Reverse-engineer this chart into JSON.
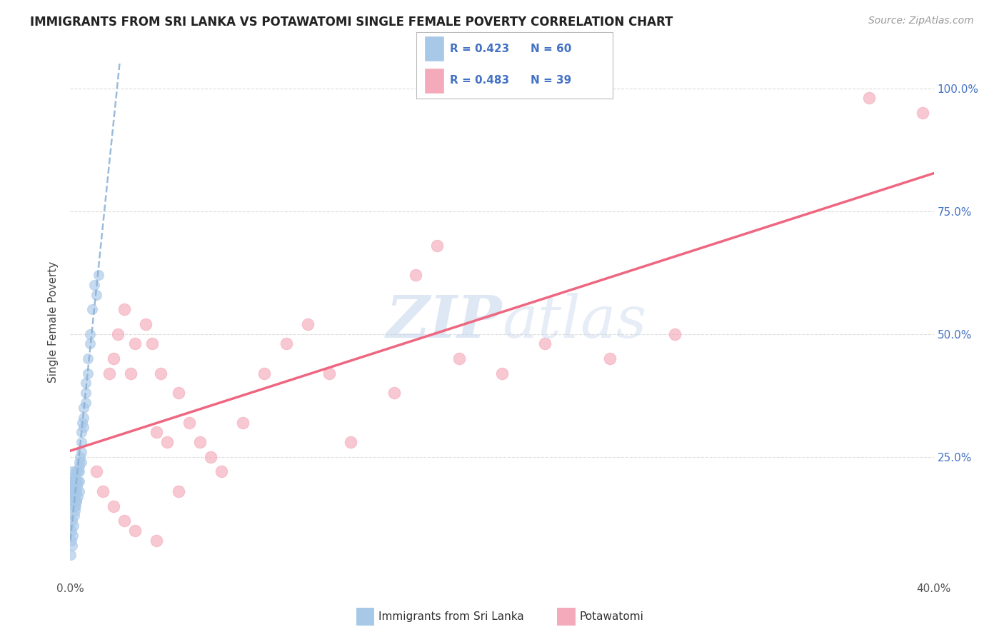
{
  "title": "IMMIGRANTS FROM SRI LANKA VS POTAWATOMI SINGLE FEMALE POVERTY CORRELATION CHART",
  "source": "Source: ZipAtlas.com",
  "ylabel": "Single Female Poverty",
  "legend_label_1": "Immigrants from Sri Lanka",
  "legend_label_2": "Potawatomi",
  "R1": 0.423,
  "N1": 60,
  "R2": 0.483,
  "N2": 39,
  "xlim": [
    0.0,
    0.4
  ],
  "ylim": [
    0.0,
    1.05
  ],
  "color_blue": "#A8C8E8",
  "color_pink": "#F4AABB",
  "line_blue": "#8AAFD4",
  "line_pink": "#EE6680",
  "background_color": "#FFFFFF",
  "sri_lanka_x": [
    0.0005,
    0.0008,
    0.001,
    0.001,
    0.0012,
    0.0013,
    0.0015,
    0.0016,
    0.0017,
    0.0018,
    0.002,
    0.002,
    0.0022,
    0.0023,
    0.0025,
    0.0025,
    0.0027,
    0.003,
    0.003,
    0.003,
    0.003,
    0.0032,
    0.0034,
    0.0035,
    0.0036,
    0.004,
    0.004,
    0.004,
    0.004,
    0.0042,
    0.0045,
    0.005,
    0.005,
    0.005,
    0.005,
    0.0055,
    0.006,
    0.006,
    0.006,
    0.007,
    0.007,
    0.007,
    0.008,
    0.008,
    0.009,
    0.009,
    0.01,
    0.011,
    0.012,
    0.013,
    0.0003,
    0.0004,
    0.0006,
    0.0007,
    0.0009,
    0.0011,
    0.0014,
    0.0019,
    0.0021,
    0.0024
  ],
  "sri_lanka_y": [
    0.18,
    0.16,
    0.22,
    0.2,
    0.19,
    0.17,
    0.16,
    0.2,
    0.15,
    0.18,
    0.21,
    0.19,
    0.17,
    0.2,
    0.22,
    0.18,
    0.16,
    0.22,
    0.2,
    0.18,
    0.16,
    0.19,
    0.17,
    0.22,
    0.2,
    0.24,
    0.22,
    0.2,
    0.18,
    0.23,
    0.25,
    0.3,
    0.28,
    0.26,
    0.24,
    0.32,
    0.35,
    0.33,
    0.31,
    0.38,
    0.4,
    0.36,
    0.45,
    0.42,
    0.5,
    0.48,
    0.55,
    0.6,
    0.58,
    0.62,
    0.05,
    0.08,
    0.1,
    0.12,
    0.07,
    0.09,
    0.11,
    0.13,
    0.14,
    0.15
  ],
  "potawatomi_x": [
    0.018,
    0.02,
    0.022,
    0.025,
    0.028,
    0.03,
    0.035,
    0.038,
    0.04,
    0.042,
    0.045,
    0.05,
    0.055,
    0.06,
    0.065,
    0.07,
    0.08,
    0.09,
    0.1,
    0.11,
    0.12,
    0.13,
    0.15,
    0.16,
    0.17,
    0.18,
    0.2,
    0.22,
    0.25,
    0.28,
    0.012,
    0.015,
    0.02,
    0.025,
    0.03,
    0.04,
    0.05,
    0.37,
    0.395
  ],
  "potawatomi_y": [
    0.42,
    0.45,
    0.5,
    0.55,
    0.42,
    0.48,
    0.52,
    0.48,
    0.3,
    0.42,
    0.28,
    0.38,
    0.32,
    0.28,
    0.25,
    0.22,
    0.32,
    0.42,
    0.48,
    0.52,
    0.42,
    0.28,
    0.38,
    0.62,
    0.68,
    0.45,
    0.42,
    0.48,
    0.45,
    0.5,
    0.22,
    0.18,
    0.15,
    0.12,
    0.1,
    0.08,
    0.18,
    0.98,
    0.95
  ]
}
